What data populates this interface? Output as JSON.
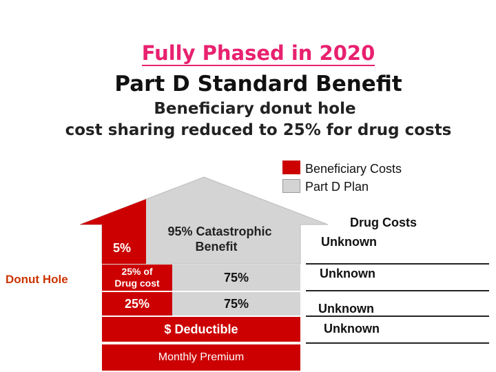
{
  "title": {
    "line1": "Fully Phased in 2020",
    "line2": "Part D Standard Benefit",
    "subtitle1": "Beneficiary donut hole",
    "subtitle2": "cost sharing reduced to 25% for drug costs"
  },
  "legend": [
    {
      "label": "Beneficiary Costs",
      "color": "#cc0000"
    },
    {
      "label": "Part D Plan",
      "color": "#d4d4d4"
    }
  ],
  "colors": {
    "beneficiary": "#cc0000",
    "plan": "#d4d4d4",
    "title_accent": "#e8216f"
  },
  "house": {
    "catastrophic": {
      "beneficiary_label": "5%",
      "plan_label": "95% Catastrophic Benefit",
      "plan_line1": "95% Catastrophic",
      "plan_line2": "Benefit"
    },
    "donut_upper": {
      "beneficiary_line1": "25% of",
      "beneficiary_line2": "Drug cost",
      "plan_label": "75%"
    },
    "donut_lower": {
      "beneficiary_label": "25%",
      "plan_label": "75%"
    },
    "donut_hole_label": "Donut Hole",
    "deductible": "$ Deductible",
    "premium": "Monthly Premium"
  },
  "drug_costs": {
    "header": "Drug Costs",
    "values": [
      "Unknown",
      "Unknown",
      "Unknown",
      "Unknown"
    ]
  }
}
